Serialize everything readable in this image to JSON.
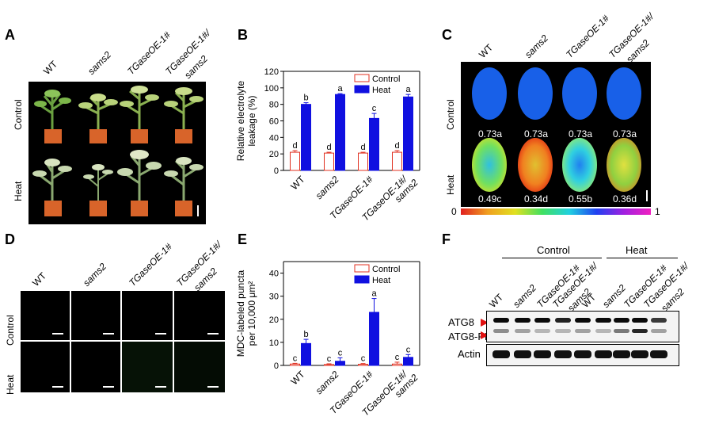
{
  "panels": {
    "A": {
      "letter": "A",
      "columns": [
        "WT",
        "sams2",
        "TGaseOE-1#",
        "TGaseOE-1#/",
        "sams2"
      ],
      "rows": [
        "Control",
        "Heat"
      ]
    },
    "B": {
      "letter": "B"
    },
    "C": {
      "letter": "C",
      "columns": [
        "WT",
        "sams2",
        "TGaseOE-1#",
        "TGaseOE-1#/",
        "sams2"
      ],
      "rows": [
        "Control",
        "Heat"
      ],
      "values_control": [
        "0.73a",
        "0.73a",
        "0.73a",
        "0.73a"
      ],
      "values_heat": [
        "0.49c",
        "0.34d",
        "0.55b",
        "0.36d"
      ],
      "scale_min": "0",
      "scale_max": "1"
    },
    "D": {
      "letter": "D",
      "columns": [
        "WT",
        "sams2",
        "TGaseOE-1#",
        "TGaseOE-1#/",
        "sams2"
      ],
      "rows": [
        "Control",
        "Heat"
      ]
    },
    "E": {
      "letter": "E"
    },
    "F": {
      "letter": "F",
      "groups": [
        "Control",
        "Heat"
      ],
      "lanes": [
        "WT",
        "sams2",
        "TGaseOE-1#",
        "TGaseOE-1#/",
        "sams2",
        "WT",
        "sams2",
        "TGaseOE-1#",
        "TGaseOE-1#/",
        "sams2"
      ],
      "bands": [
        "ATG8",
        "ATG8-PE",
        "Actin"
      ]
    }
  },
  "chart_data": [
    {
      "type": "bar",
      "panel": "B",
      "categories": [
        "WT",
        "sams2",
        "TGaseOE-1#",
        "TGaseOE-1#/ sams2"
      ],
      "category_labels": [
        [
          "WT"
        ],
        [
          "sams2"
        ],
        [
          "TGaseOE-1#"
        ],
        [
          "TGaseOE-1#/",
          "sams2"
        ]
      ],
      "series": [
        {
          "name": "Control",
          "values": [
            22,
            21,
            21,
            22
          ],
          "errors": [
            2,
            1,
            1,
            2
          ],
          "letters": [
            "d",
            "d",
            "d",
            "d"
          ],
          "color": "#ffffff",
          "stroke": "#e03020"
        },
        {
          "name": "Heat",
          "values": [
            80,
            92,
            63,
            89
          ],
          "errors": [
            2,
            1,
            6,
            3
          ],
          "letters": [
            "b",
            "a",
            "c",
            "a"
          ],
          "color": "#1010e0",
          "stroke": "#1010e0"
        }
      ],
      "ylabel": [
        "Relative electrolyte",
        "leakage (%)"
      ],
      "ylim": [
        0,
        120
      ],
      "yticks": [
        0,
        20,
        40,
        60,
        80,
        100,
        120
      ],
      "legend": "top-right"
    },
    {
      "type": "bar",
      "panel": "E",
      "categories": [
        "WT",
        "sams2",
        "TGaseOE-1#",
        "TGaseOE-1#/ sams2"
      ],
      "category_labels": [
        [
          "WT"
        ],
        [
          "sams2"
        ],
        [
          "TGaseOE-1#"
        ],
        [
          "TGaseOE-1#/",
          "sams2"
        ]
      ],
      "series": [
        {
          "name": "Control",
          "values": [
            0.6,
            0.4,
            0.5,
            0.6
          ],
          "errors": [
            0.3,
            0.3,
            0.3,
            0.8
          ],
          "letters": [
            "c",
            "c",
            "c",
            "c"
          ],
          "color": "#ffffff",
          "stroke": "#e03020"
        },
        {
          "name": "Heat",
          "values": [
            9.5,
            1.8,
            23,
            3.5
          ],
          "errors": [
            1.8,
            1.5,
            6,
            1.2
          ],
          "letters": [
            "b",
            "c",
            "a",
            "c"
          ],
          "color": "#1010e0",
          "stroke": "#1010e0"
        }
      ],
      "ylabel": [
        "MDC-labeled puncta",
        "per 10,000 μm²"
      ],
      "ylim": [
        0,
        45
      ],
      "yticks": [
        0,
        10,
        20,
        30,
        40
      ],
      "legend": "top-right"
    }
  ]
}
